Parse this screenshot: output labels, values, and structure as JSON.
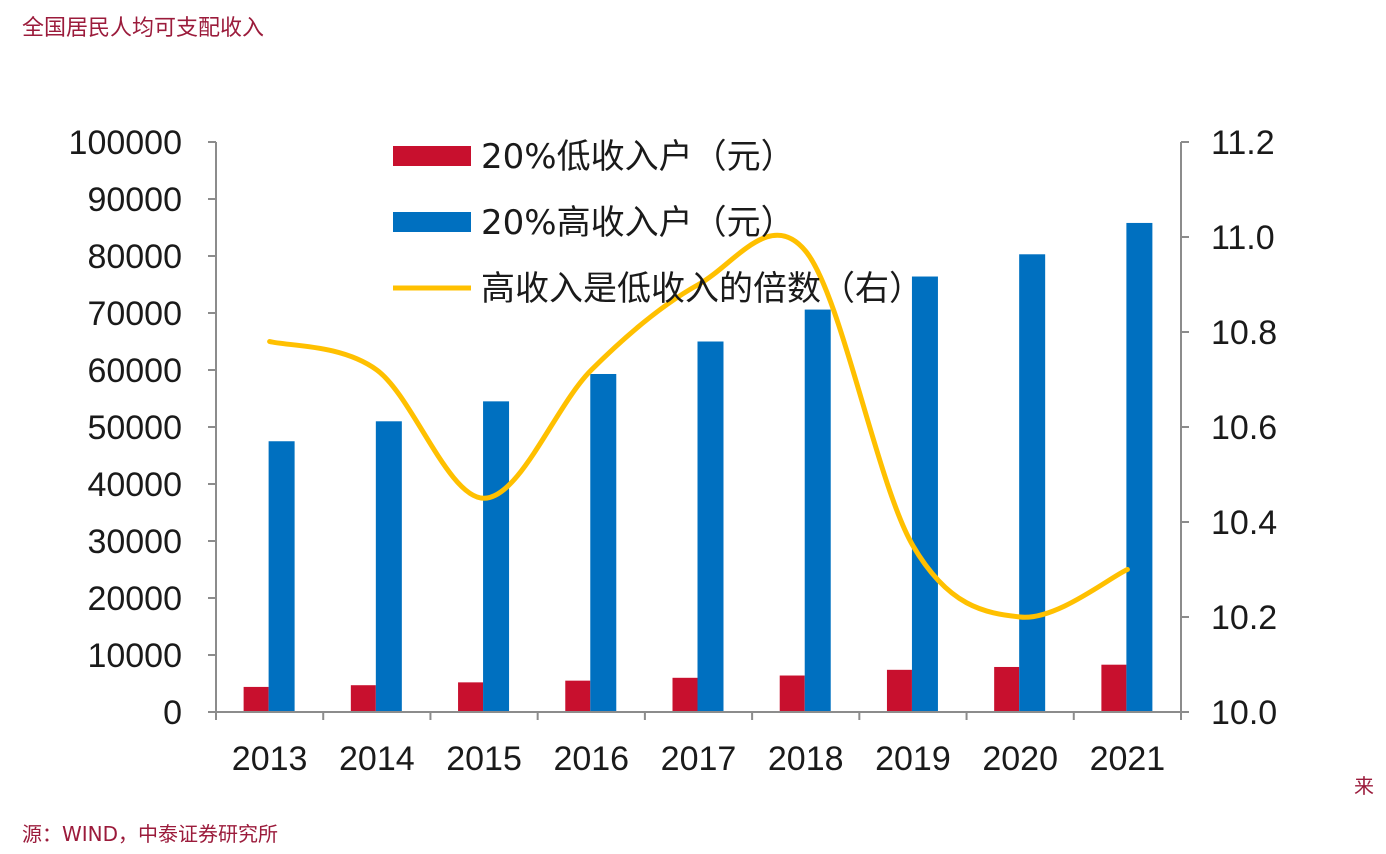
{
  "header": {
    "title": "全国居民人均可支配收入"
  },
  "footer": {
    "source_lead": "来",
    "source": "源：WIND，中泰证券研究所"
  },
  "chart_data": {
    "type": "bar",
    "title": "全国居民人均可支配收入",
    "categories": [
      "2013",
      "2014",
      "2015",
      "2016",
      "2017",
      "2018",
      "2019",
      "2020",
      "2021"
    ],
    "series": [
      {
        "name": "20%低收入户（元）",
        "type": "bar",
        "axis": "left",
        "color": "#c8102e",
        "values": [
          4400,
          4700,
          5200,
          5500,
          6000,
          6400,
          7400,
          7900,
          8300
        ]
      },
      {
        "name": "20%高收入户（元）",
        "type": "bar",
        "axis": "left",
        "color": "#0070c0",
        "values": [
          47500,
          51000,
          54500,
          59300,
          65000,
          70600,
          76400,
          80300,
          85800
        ]
      },
      {
        "name": "高收入是低收入的倍数（右）",
        "type": "line",
        "axis": "right",
        "color": "#ffc000",
        "values": [
          10.78,
          10.72,
          10.45,
          10.72,
          10.9,
          10.97,
          10.35,
          10.2,
          10.3
        ]
      }
    ],
    "y_left": {
      "min": 0,
      "max": 100000,
      "ticks": [
        "0",
        "10000",
        "20000",
        "30000",
        "40000",
        "50000",
        "60000",
        "70000",
        "80000",
        "90000",
        "100000"
      ]
    },
    "y_right": {
      "min": 10.0,
      "max": 11.2,
      "ticks": [
        "10.0",
        "10.2",
        "10.4",
        "10.6",
        "10.8",
        "11.0",
        "11.2"
      ]
    },
    "legend": {
      "position": "top-center",
      "items": [
        "20%低收入户（元）",
        "20%高收入户（元）",
        "高收入是低收入的倍数（右）"
      ]
    }
  }
}
